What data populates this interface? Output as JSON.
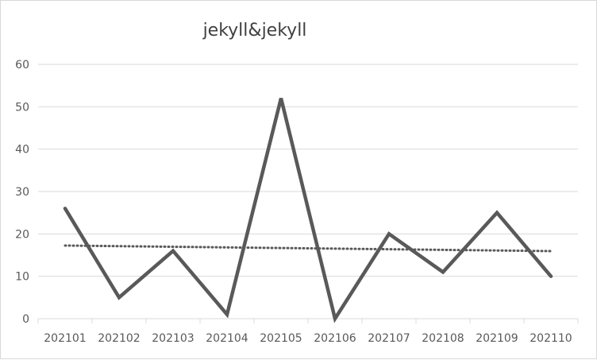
{
  "chart_data": {
    "type": "line",
    "title": "jekyll&jekyll",
    "xlabel": "",
    "ylabel": "",
    "categories": [
      "202101",
      "202102",
      "202103",
      "202104",
      "202105",
      "202106",
      "202107",
      "202108",
      "202109",
      "202110"
    ],
    "series": [
      {
        "values": [
          26,
          5,
          16,
          1,
          52,
          0,
          20,
          11,
          25,
          10
        ],
        "color": "#595959"
      }
    ],
    "trendline": {
      "type": "linear",
      "style": "dotted",
      "color": "#595959"
    },
    "ylim": [
      0,
      60
    ],
    "yticks": [
      "0",
      "10",
      "20",
      "30",
      "40",
      "50",
      "60"
    ],
    "grid": true,
    "legend": "none"
  }
}
